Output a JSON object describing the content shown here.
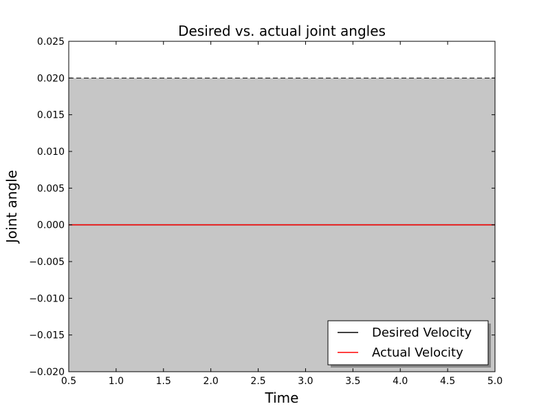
{
  "chart_data": {
    "type": "line",
    "title": "Desired vs. actual joint angles",
    "xlabel": "Time",
    "ylabel": "Joint angle",
    "xlim": [
      0.5,
      5.0
    ],
    "ylim": [
      -0.02,
      0.025
    ],
    "x_ticks": [
      0.5,
      1.0,
      1.5,
      2.0,
      2.5,
      3.0,
      3.5,
      4.0,
      4.5,
      5.0
    ],
    "x_tick_labels": [
      "0.5",
      "1.0",
      "1.5",
      "2.0",
      "2.5",
      "3.0",
      "3.5",
      "4.0",
      "4.5",
      "5.0"
    ],
    "y_ticks": [
      -0.02,
      -0.015,
      -0.01,
      -0.005,
      0.0,
      0.005,
      0.01,
      0.015,
      0.02,
      0.025
    ],
    "y_tick_labels": [
      "−0.020",
      "−0.015",
      "−0.010",
      "−0.005",
      "0.000",
      "0.005",
      "0.010",
      "0.015",
      "0.020",
      "0.025"
    ],
    "grid": false,
    "legend_position": "bottom-right",
    "band": {
      "lower": -0.02,
      "upper": 0.02,
      "color": "#c6c6c6",
      "boundary_style": "dashed",
      "boundary_color": "#000000"
    },
    "series": [
      {
        "name": "Desired Velocity",
        "color": "#000000",
        "x": [
          0.5,
          5.0
        ],
        "y": [
          0.0,
          0.0
        ]
      },
      {
        "name": "Actual Velocity",
        "color": "#ff0000",
        "x": [
          0.5,
          5.0
        ],
        "y": [
          0.0,
          0.0
        ]
      }
    ]
  }
}
